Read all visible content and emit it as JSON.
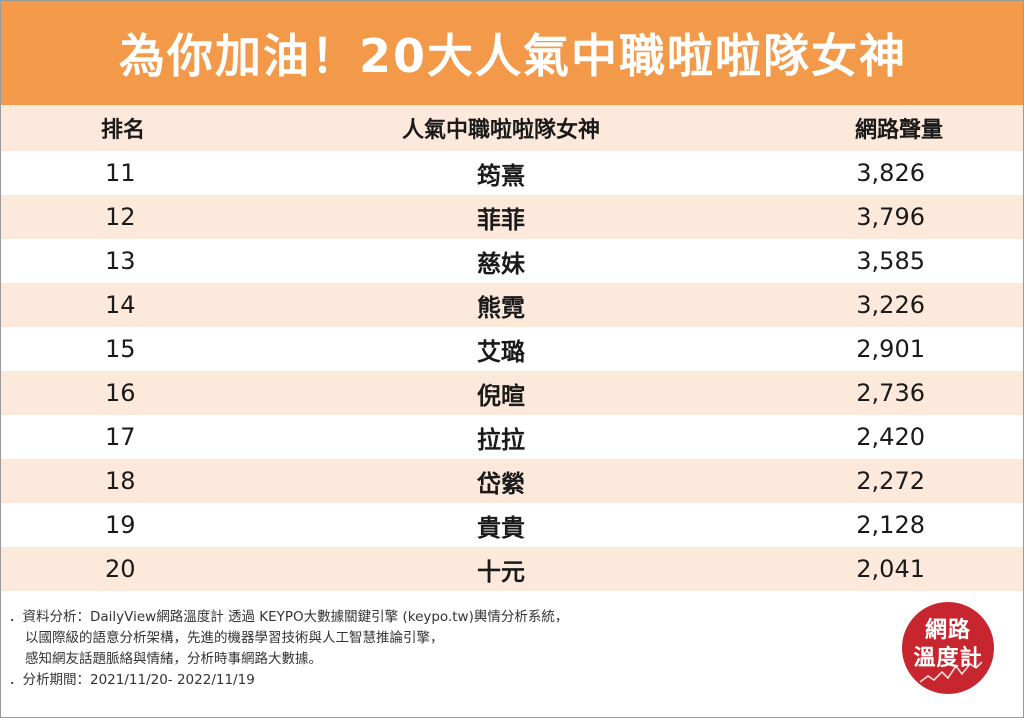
{
  "banner": {
    "title": "為你加油！20大人氣中職啦啦隊女神"
  },
  "table": {
    "headers": {
      "rank": "排名",
      "name": "人氣中職啦啦隊女神",
      "volume": "網路聲量"
    },
    "rows": [
      {
        "rank": "11",
        "name": "筠熹",
        "volume": "3,826"
      },
      {
        "rank": "12",
        "name": "菲菲",
        "volume": "3,796"
      },
      {
        "rank": "13",
        "name": "慈妹",
        "volume": "3,585"
      },
      {
        "rank": "14",
        "name": "熊霓",
        "volume": "3,226"
      },
      {
        "rank": "15",
        "name": "艾璐",
        "volume": "2,901"
      },
      {
        "rank": "16",
        "name": "倪暄",
        "volume": "2,736"
      },
      {
        "rank": "17",
        "name": "拉拉",
        "volume": "2,420"
      },
      {
        "rank": "18",
        "name": "岱縈",
        "volume": "2,272"
      },
      {
        "rank": "19",
        "name": "貴貴",
        "volume": "2,128"
      },
      {
        "rank": "20",
        "name": "十元",
        "volume": "2,041"
      }
    ]
  },
  "notes": {
    "line1": "．資料分析：DailyView網路溫度計 透過 KEYPO大數據關鍵引擎 (keypo.tw)輿情分析系統，",
    "line2": "以國際級的語意分析架構，先進的機器學習技術與人工智慧推論引擎，",
    "line3": "感知網友話題脈絡與情緒，分析時事網路大數據。",
    "line4": "．分析期間：2021/11/20- 2022/11/19"
  },
  "logo": {
    "line1": "網路",
    "line2": "溫度計",
    "color": "#c8262e"
  },
  "colors": {
    "banner": "#f39a4a",
    "stripe": "#fde9dc"
  }
}
